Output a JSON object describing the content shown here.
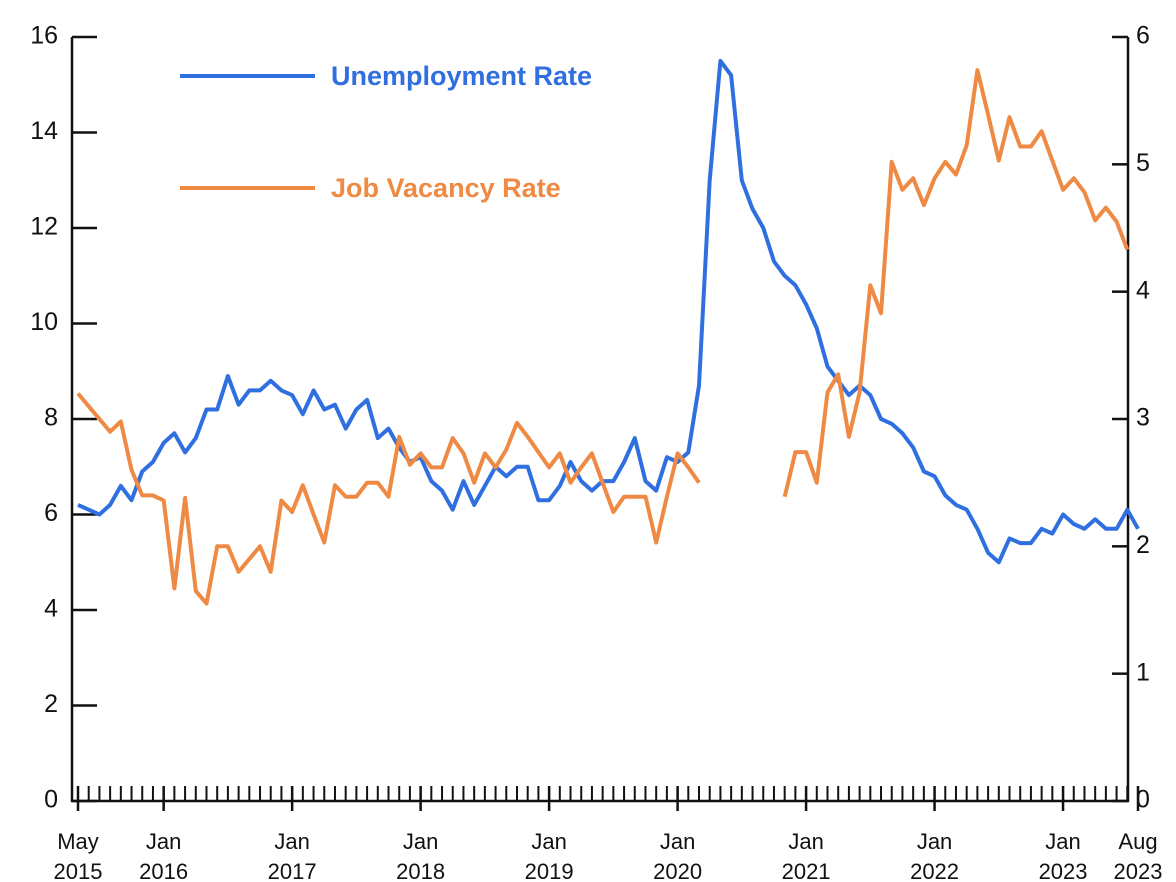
{
  "chart_data": {
    "type": "line",
    "x": [
      "2015-05",
      "2015-06",
      "2015-07",
      "2015-08",
      "2015-09",
      "2015-10",
      "2015-11",
      "2015-12",
      "2016-01",
      "2016-02",
      "2016-03",
      "2016-04",
      "2016-05",
      "2016-06",
      "2016-07",
      "2016-08",
      "2016-09",
      "2016-10",
      "2016-11",
      "2016-12",
      "2017-01",
      "2017-02",
      "2017-03",
      "2017-04",
      "2017-05",
      "2017-06",
      "2017-07",
      "2017-08",
      "2017-09",
      "2017-10",
      "2017-11",
      "2017-12",
      "2018-01",
      "2018-02",
      "2018-03",
      "2018-04",
      "2018-05",
      "2018-06",
      "2018-07",
      "2018-08",
      "2018-09",
      "2018-10",
      "2018-11",
      "2018-12",
      "2019-01",
      "2019-02",
      "2019-03",
      "2019-04",
      "2019-05",
      "2019-06",
      "2019-07",
      "2019-08",
      "2019-09",
      "2019-10",
      "2019-11",
      "2019-12",
      "2020-01",
      "2020-02",
      "2020-03",
      "2020-04",
      "2020-05",
      "2020-06",
      "2020-07",
      "2020-08",
      "2020-09",
      "2020-10",
      "2020-11",
      "2020-12",
      "2021-01",
      "2021-02",
      "2021-03",
      "2021-04",
      "2021-05",
      "2021-06",
      "2021-07",
      "2021-08",
      "2021-09",
      "2021-10",
      "2021-11",
      "2021-12",
      "2022-01",
      "2022-02",
      "2022-03",
      "2022-04",
      "2022-05",
      "2022-06",
      "2022-07",
      "2022-08",
      "2022-09",
      "2022-10",
      "2022-11",
      "2022-12",
      "2023-01",
      "2023-02",
      "2023-03",
      "2023-04",
      "2023-05",
      "2023-06",
      "2023-07",
      "2023-08"
    ],
    "series": [
      {
        "name": "Unemployment Rate",
        "color": "#2f6fe0",
        "axis": "y",
        "values": [
          6.2,
          6.1,
          6.0,
          6.2,
          6.6,
          6.3,
          6.9,
          7.1,
          7.5,
          7.7,
          7.3,
          7.6,
          8.2,
          8.2,
          8.9,
          8.3,
          8.6,
          8.6,
          8.8,
          8.6,
          8.5,
          8.1,
          8.6,
          8.2,
          8.3,
          7.8,
          8.2,
          8.4,
          7.6,
          7.8,
          7.4,
          7.1,
          7.2,
          6.7,
          6.5,
          6.1,
          6.7,
          6.2,
          6.6,
          7.0,
          6.8,
          7.0,
          7.0,
          6.3,
          6.3,
          6.6,
          7.1,
          6.7,
          6.5,
          6.7,
          6.7,
          7.1,
          7.6,
          6.7,
          6.5,
          7.2,
          7.1,
          7.3,
          8.7,
          13.0,
          15.5,
          15.2,
          13.0,
          12.4,
          12.0,
          11.3,
          11.0,
          10.8,
          10.4,
          9.9,
          9.1,
          8.8,
          8.5,
          8.7,
          8.5,
          8.0,
          7.9,
          7.7,
          7.4,
          6.9,
          6.8,
          6.4,
          6.2,
          6.1,
          5.7,
          5.2,
          5.0,
          5.5,
          5.4,
          5.4,
          5.7,
          5.6,
          6.0,
          5.8,
          5.7,
          5.9,
          5.7,
          5.7,
          6.1,
          5.7
        ]
      },
      {
        "name": "Job Vacancy Rate",
        "color": "#ee8a44",
        "axis": "y2",
        "values": [
          3.2,
          3.1,
          3.0,
          2.9,
          2.98,
          2.6,
          2.4,
          2.4,
          2.36,
          1.67,
          2.38,
          1.65,
          1.55,
          2.0,
          2.0,
          1.8,
          1.9,
          2.0,
          1.8,
          2.36,
          2.27,
          2.48,
          2.25,
          2.03,
          2.48,
          2.39,
          2.39,
          2.5,
          2.5,
          2.39,
          2.86,
          2.64,
          2.73,
          2.62,
          2.62,
          2.85,
          2.73,
          2.5,
          2.73,
          2.62,
          2.76,
          2.97,
          2.86,
          2.74,
          2.62,
          2.73,
          2.5,
          2.62,
          2.73,
          2.5,
          2.27,
          2.39,
          2.39,
          2.39,
          2.03,
          2.39,
          2.73,
          2.62,
          2.5,
          null,
          null,
          null,
          null,
          null,
          null,
          null,
          2.39,
          2.74,
          2.74,
          2.5,
          3.21,
          3.35,
          2.86,
          3.21,
          4.05,
          3.83,
          5.02,
          4.8,
          4.89,
          4.68,
          4.89,
          5.02,
          4.92,
          5.15,
          5.74,
          5.39,
          5.03,
          5.37,
          5.14,
          5.14,
          5.26,
          5.03,
          4.8,
          4.89,
          4.78,
          4.56,
          4.66,
          4.55,
          4.33,
          null
        ]
      }
    ],
    "xticks": [
      {
        "value": "2015-05",
        "label": "May 2015"
      },
      {
        "value": "2016-01",
        "label": "Jan 2016"
      },
      {
        "value": "2017-01",
        "label": "Jan 2017"
      },
      {
        "value": "2018-01",
        "label": "Jan 2018"
      },
      {
        "value": "2019-01",
        "label": "Jan 2019"
      },
      {
        "value": "2020-01",
        "label": "Jan 2020"
      },
      {
        "value": "2021-01",
        "label": "Jan 2021"
      },
      {
        "value": "2022-01",
        "label": "Jan 2022"
      },
      {
        "value": "2023-01",
        "label": "Jan 2023"
      },
      {
        "value": "2023-08",
        "label": "Aug 2023"
      }
    ],
    "ylim": [
      0,
      16
    ],
    "yticks": [
      0,
      2,
      4,
      6,
      8,
      10,
      12,
      14,
      16
    ],
    "y2lim": [
      0,
      6
    ],
    "y2ticks": [
      0,
      1,
      2,
      3,
      4,
      5,
      6
    ],
    "legend": "upper left",
    "grid": false
  }
}
